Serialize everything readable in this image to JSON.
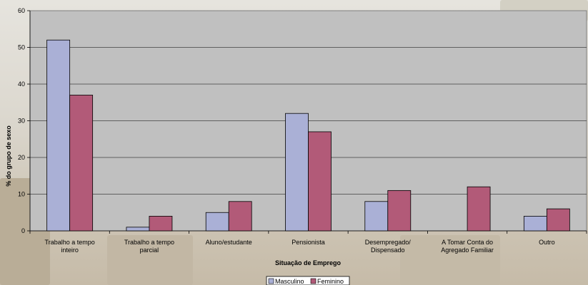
{
  "chart_data": {
    "type": "bar",
    "title": "",
    "xlabel": "Situação de Emprego",
    "ylabel": "% do grupo de sexo",
    "ylim": [
      0,
      60
    ],
    "yticks": [
      0,
      10,
      20,
      30,
      40,
      50,
      60
    ],
    "grid": true,
    "legend_position": "bottom",
    "categories": [
      [
        "Trabalho a tempo",
        "inteiro"
      ],
      [
        "Trabalho a tempo",
        "parcial"
      ],
      [
        "Aluno/estudante"
      ],
      [
        "Pensionista"
      ],
      [
        "Desempregado/",
        "Dispensado"
      ],
      [
        "A Tomar Conta do",
        "Agregado Familiar"
      ],
      [
        "Outro"
      ]
    ],
    "series": [
      {
        "name": "Masculino",
        "color": "#aab0d6",
        "values": [
          52,
          1,
          5,
          32,
          8,
          0,
          4
        ]
      },
      {
        "name": "Feminino",
        "color": "#b25a78",
        "values": [
          37,
          4,
          8,
          27,
          11,
          12,
          6
        ]
      }
    ]
  }
}
